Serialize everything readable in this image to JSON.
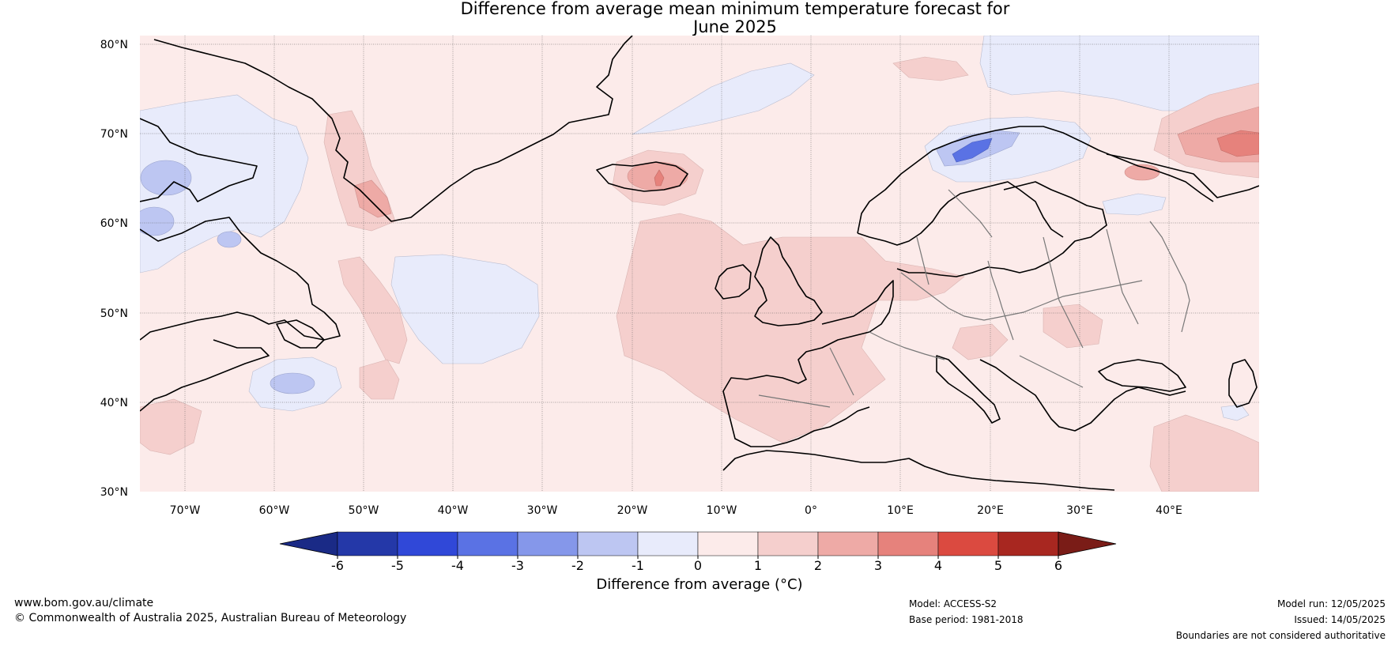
{
  "title": {
    "line1": "Difference from average mean minimum temperature forecast for",
    "line2": "June 2025"
  },
  "map": {
    "lat_labels": [
      "80°N",
      "70°N",
      "60°N",
      "50°N",
      "40°N",
      "30°N"
    ],
    "lon_labels": [
      "70°W",
      "60°W",
      "50°W",
      "40°W",
      "30°W",
      "20°W",
      "10°W",
      "0°",
      "10°E",
      "20°E",
      "30°E",
      "40°E"
    ],
    "extent": {
      "lon_min": -75,
      "lon_max": 50,
      "lat_min": 30,
      "lat_max": 81
    },
    "gridlines": true
  },
  "colorbar": {
    "ticks": [
      "-6",
      "-5",
      "-4",
      "-3",
      "-2",
      "-1",
      "0",
      "1",
      "2",
      "3",
      "4",
      "5",
      "6"
    ],
    "colors": [
      "#1a2a86",
      "#2438a8",
      "#3048d8",
      "#5a72e4",
      "#8597ea",
      "#bdc6f2",
      "#e8ebfb",
      "#fcebea",
      "#f5cfcd",
      "#eeaaa6",
      "#e6827c",
      "#db4a40",
      "#a82720",
      "#7a1c17"
    ],
    "label": "Difference from average (°C)"
  },
  "footer": {
    "website": "www.bom.gov.au/climate",
    "copyright": "© Commonwealth of Australia 2025, Australian Bureau of Meteorology",
    "model": "Model: ACCESS-S2",
    "base_period": "Base period: 1981-2018",
    "model_run": "Model run: 12/05/2025",
    "issued": "Issued: 14/05/2025",
    "disclaimer": "Boundaries are not considered authoritative"
  }
}
